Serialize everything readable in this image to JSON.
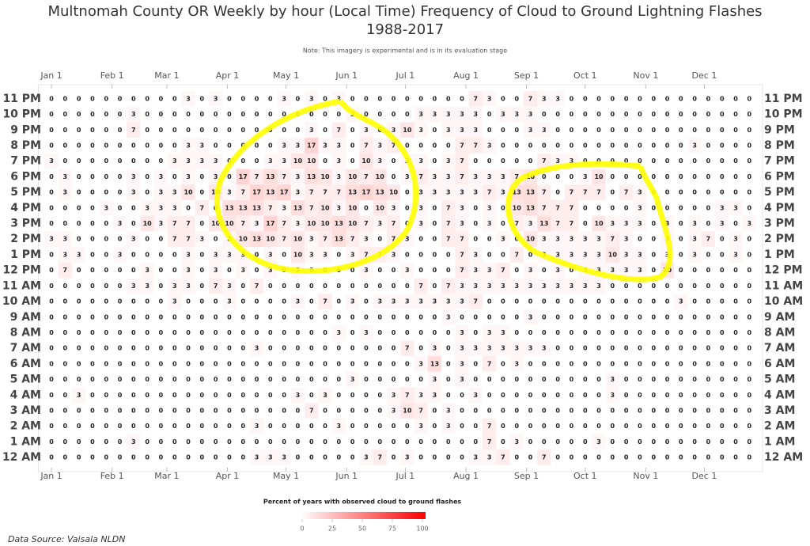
{
  "chart_data": {
    "type": "heatmap",
    "title": "Multnomah County OR Weekly by hour (Local Time) Frequency of Cloud to Ground Lightning Flashes",
    "subtitle": "1988-2017",
    "note": "Note: This imagery is experimental and is in its evaluation stage",
    "colorbar_title": "Percent of years with observed cloud to ground flashes",
    "source": "Data Source: Vaisala NLDN",
    "color_min": "#ffffff",
    "color_max": "#ff0000",
    "colorbar_lim": [
      0,
      100
    ],
    "colorbar_ticks": [
      0,
      25,
      50,
      75,
      100
    ],
    "xlim": [
      -0.5,
      51.5
    ],
    "xticks": [
      {
        "value": 0,
        "label": "Jan 1"
      },
      {
        "value": 4.43,
        "label": "Feb 1"
      },
      {
        "value": 8.43,
        "label": "Mar 1"
      },
      {
        "value": 12.86,
        "label": "Apr 1"
      },
      {
        "value": 17.14,
        "label": "May 1"
      },
      {
        "value": 21.57,
        "label": "Jun 1"
      },
      {
        "value": 25.86,
        "label": "Jul 1"
      },
      {
        "value": 30.29,
        "label": "Aug 1"
      },
      {
        "value": 34.71,
        "label": "Sep 1"
      },
      {
        "value": 39,
        "label": "Oct 1"
      },
      {
        "value": 43.43,
        "label": "Nov 1"
      },
      {
        "value": 47.71,
        "label": "Dec 1"
      }
    ],
    "hours": [
      "11 PM",
      "10 PM",
      "9 PM",
      "8 PM",
      "7 PM",
      "6 PM",
      "5 PM",
      "4 PM",
      "3 PM",
      "2 PM",
      "1 PM",
      "12 PM",
      "11 AM",
      "10 AM",
      "9 AM",
      "8 AM",
      "7 AM",
      "6 AM",
      "5 AM",
      "4 AM",
      "3 AM",
      "2 AM",
      "1 AM",
      "12 AM"
    ],
    "values": [
      [
        0,
        0,
        0,
        0,
        0,
        0,
        0,
        0,
        0,
        0,
        3,
        0,
        3,
        0,
        0,
        0,
        0,
        3,
        0,
        3,
        0,
        3,
        0,
        0,
        0,
        0,
        0,
        0,
        0,
        0,
        0,
        7,
        3,
        0,
        0,
        7,
        3,
        3,
        0,
        0,
        0,
        0,
        0,
        0,
        0,
        0,
        0,
        0,
        0,
        0,
        0,
        0
      ],
      [
        0,
        0,
        0,
        0,
        0,
        0,
        3,
        0,
        0,
        0,
        0,
        0,
        0,
        0,
        0,
        0,
        0,
        0,
        0,
        0,
        0,
        0,
        3,
        0,
        0,
        0,
        0,
        3,
        3,
        3,
        3,
        3,
        0,
        3,
        3,
        3,
        0,
        0,
        0,
        0,
        0,
        0,
        0,
        0,
        0,
        0,
        0,
        0,
        0,
        0,
        0,
        0
      ],
      [
        0,
        0,
        0,
        0,
        0,
        0,
        7,
        0,
        0,
        0,
        0,
        0,
        0,
        0,
        0,
        0,
        0,
        0,
        0,
        3,
        0,
        7,
        0,
        3,
        0,
        3,
        10,
        3,
        0,
        3,
        3,
        3,
        0,
        0,
        0,
        3,
        3,
        0,
        0,
        0,
        0,
        0,
        0,
        0,
        0,
        0,
        0,
        0,
        0,
        0,
        0,
        0
      ],
      [
        0,
        0,
        0,
        0,
        0,
        0,
        0,
        0,
        0,
        0,
        3,
        3,
        0,
        0,
        0,
        0,
        0,
        3,
        3,
        17,
        3,
        3,
        0,
        7,
        3,
        7,
        0,
        0,
        0,
        0,
        7,
        7,
        3,
        0,
        0,
        0,
        0,
        0,
        0,
        0,
        0,
        0,
        0,
        0,
        0,
        0,
        0,
        3,
        0,
        0,
        0,
        0
      ],
      [
        3,
        0,
        0,
        0,
        0,
        0,
        0,
        0,
        0,
        3,
        3,
        3,
        3,
        0,
        0,
        0,
        3,
        3,
        10,
        10,
        0,
        3,
        0,
        10,
        3,
        0,
        3,
        3,
        0,
        3,
        7,
        0,
        0,
        0,
        0,
        0,
        7,
        3,
        3,
        0,
        0,
        0,
        0,
        0,
        0,
        0,
        0,
        0,
        0,
        0,
        0,
        0
      ],
      [
        0,
        3,
        0,
        0,
        0,
        0,
        3,
        0,
        3,
        0,
        3,
        0,
        3,
        0,
        17,
        7,
        13,
        7,
        3,
        13,
        10,
        3,
        10,
        7,
        10,
        0,
        3,
        7,
        3,
        3,
        7,
        3,
        3,
        3,
        7,
        10,
        0,
        0,
        0,
        3,
        10,
        0,
        0,
        0,
        0,
        0,
        0,
        0,
        0,
        0,
        0,
        0
      ],
      [
        0,
        3,
        0,
        0,
        0,
        0,
        3,
        0,
        3,
        3,
        10,
        0,
        10,
        3,
        7,
        17,
        13,
        17,
        3,
        7,
        7,
        7,
        13,
        17,
        13,
        10,
        0,
        3,
        3,
        3,
        3,
        3,
        7,
        3,
        13,
        13,
        7,
        0,
        7,
        7,
        7,
        0,
        7,
        3,
        0,
        0,
        0,
        0,
        0,
        0,
        0,
        0
      ],
      [
        0,
        0,
        0,
        0,
        3,
        0,
        0,
        3,
        3,
        3,
        0,
        7,
        0,
        13,
        13,
        13,
        7,
        3,
        13,
        7,
        10,
        3,
        10,
        0,
        10,
        3,
        0,
        3,
        0,
        7,
        3,
        0,
        3,
        0,
        10,
        13,
        7,
        7,
        7,
        0,
        0,
        0,
        0,
        3,
        0,
        0,
        0,
        0,
        0,
        3,
        3,
        0
      ],
      [
        0,
        0,
        0,
        0,
        0,
        3,
        0,
        10,
        3,
        7,
        7,
        0,
        10,
        10,
        7,
        3,
        17,
        7,
        3,
        10,
        10,
        13,
        10,
        7,
        3,
        7,
        0,
        3,
        0,
        7,
        3,
        0,
        3,
        0,
        7,
        3,
        13,
        7,
        7,
        0,
        10,
        3,
        3,
        3,
        0,
        3,
        0,
        3,
        0,
        3,
        0,
        3
      ],
      [
        3,
        3,
        0,
        0,
        0,
        0,
        3,
        0,
        0,
        7,
        7,
        3,
        0,
        3,
        10,
        13,
        10,
        7,
        10,
        3,
        7,
        13,
        7,
        3,
        0,
        7,
        3,
        0,
        0,
        7,
        7,
        0,
        0,
        3,
        0,
        10,
        3,
        3,
        3,
        3,
        3,
        7,
        3,
        0,
        0,
        3,
        0,
        3,
        7,
        0,
        3,
        0
      ],
      [
        0,
        3,
        3,
        0,
        0,
        3,
        0,
        0,
        0,
        0,
        3,
        0,
        3,
        3,
        3,
        0,
        3,
        0,
        10,
        3,
        3,
        0,
        3,
        7,
        7,
        3,
        0,
        0,
        0,
        0,
        7,
        3,
        0,
        0,
        7,
        0,
        3,
        3,
        3,
        3,
        3,
        10,
        3,
        3,
        0,
        3,
        0,
        3,
        0,
        0,
        3,
        0
      ],
      [
        0,
        7,
        0,
        0,
        0,
        0,
        0,
        3,
        0,
        0,
        3,
        0,
        3,
        0,
        3,
        0,
        3,
        0,
        3,
        0,
        0,
        0,
        0,
        3,
        0,
        0,
        3,
        0,
        0,
        0,
        7,
        3,
        3,
        7,
        0,
        3,
        0,
        3,
        0,
        3,
        3,
        3,
        3,
        3,
        0,
        10,
        0,
        0,
        0,
        0,
        0,
        0
      ],
      [
        0,
        0,
        0,
        0,
        0,
        0,
        3,
        3,
        0,
        3,
        3,
        0,
        7,
        3,
        0,
        7,
        0,
        0,
        0,
        0,
        0,
        0,
        0,
        0,
        0,
        0,
        0,
        7,
        0,
        7,
        3,
        3,
        3,
        3,
        3,
        3,
        3,
        3,
        3,
        3,
        3,
        0,
        0,
        0,
        0,
        0,
        0,
        0,
        0,
        0,
        0,
        0
      ],
      [
        0,
        0,
        0,
        0,
        0,
        0,
        0,
        0,
        0,
        3,
        0,
        0,
        0,
        3,
        0,
        0,
        0,
        0,
        3,
        0,
        7,
        0,
        3,
        0,
        3,
        3,
        3,
        3,
        3,
        3,
        3,
        7,
        0,
        0,
        0,
        0,
        0,
        0,
        0,
        0,
        0,
        0,
        0,
        0,
        0,
        0,
        3,
        0,
        0,
        0,
        0,
        0
      ],
      [
        0,
        0,
        0,
        0,
        0,
        0,
        0,
        0,
        0,
        0,
        0,
        0,
        0,
        0,
        0,
        0,
        0,
        0,
        0,
        0,
        0,
        0,
        0,
        0,
        0,
        0,
        0,
        0,
        0,
        3,
        0,
        0,
        0,
        0,
        0,
        3,
        0,
        0,
        0,
        0,
        0,
        0,
        0,
        0,
        0,
        0,
        0,
        0,
        0,
        0,
        0,
        0
      ],
      [
        0,
        0,
        0,
        0,
        0,
        0,
        0,
        0,
        0,
        0,
        0,
        0,
        0,
        0,
        0,
        0,
        0,
        0,
        0,
        0,
        0,
        3,
        0,
        3,
        0,
        0,
        0,
        0,
        0,
        0,
        3,
        0,
        3,
        3,
        0,
        0,
        0,
        0,
        0,
        0,
        0,
        0,
        0,
        0,
        0,
        0,
        0,
        0,
        0,
        0,
        0,
        0
      ],
      [
        0,
        0,
        0,
        0,
        0,
        0,
        0,
        0,
        0,
        0,
        0,
        0,
        0,
        0,
        0,
        3,
        0,
        0,
        0,
        0,
        0,
        0,
        0,
        0,
        0,
        0,
        7,
        0,
        3,
        0,
        3,
        3,
        3,
        3,
        3,
        3,
        3,
        0,
        0,
        0,
        0,
        0,
        0,
        0,
        0,
        0,
        0,
        0,
        0,
        0,
        0,
        0
      ],
      [
        0,
        0,
        0,
        0,
        0,
        0,
        0,
        0,
        0,
        0,
        0,
        0,
        0,
        0,
        0,
        0,
        0,
        0,
        0,
        0,
        0,
        0,
        0,
        0,
        0,
        0,
        0,
        3,
        13,
        0,
        3,
        0,
        7,
        0,
        3,
        0,
        0,
        0,
        0,
        0,
        0,
        0,
        0,
        0,
        0,
        0,
        0,
        0,
        0,
        0,
        0,
        0
      ],
      [
        0,
        0,
        0,
        0,
        0,
        0,
        0,
        0,
        0,
        0,
        0,
        0,
        0,
        0,
        0,
        0,
        0,
        0,
        0,
        0,
        0,
        0,
        3,
        0,
        0,
        0,
        0,
        0,
        3,
        0,
        3,
        0,
        0,
        0,
        0,
        0,
        0,
        0,
        0,
        0,
        0,
        3,
        0,
        0,
        0,
        0,
        0,
        0,
        0,
        0,
        0,
        0
      ],
      [
        0,
        0,
        3,
        0,
        0,
        0,
        0,
        0,
        0,
        0,
        0,
        0,
        0,
        0,
        0,
        0,
        0,
        0,
        3,
        0,
        3,
        0,
        0,
        0,
        0,
        3,
        7,
        3,
        3,
        0,
        0,
        3,
        0,
        0,
        0,
        0,
        0,
        0,
        0,
        0,
        0,
        3,
        0,
        0,
        0,
        0,
        0,
        0,
        0,
        0,
        0,
        0
      ],
      [
        0,
        0,
        0,
        0,
        0,
        0,
        0,
        0,
        0,
        0,
        0,
        0,
        0,
        0,
        0,
        0,
        0,
        0,
        0,
        7,
        0,
        0,
        0,
        0,
        0,
        3,
        10,
        7,
        0,
        3,
        0,
        0,
        0,
        0,
        0,
        0,
        0,
        0,
        0,
        0,
        0,
        0,
        0,
        0,
        0,
        0,
        0,
        0,
        0,
        0,
        0,
        0
      ],
      [
        0,
        0,
        0,
        0,
        0,
        0,
        0,
        0,
        0,
        0,
        0,
        0,
        0,
        0,
        0,
        3,
        0,
        0,
        0,
        0,
        0,
        3,
        0,
        0,
        0,
        0,
        0,
        3,
        0,
        3,
        0,
        0,
        7,
        0,
        0,
        0,
        0,
        0,
        0,
        0,
        0,
        0,
        0,
        0,
        0,
        0,
        0,
        0,
        0,
        0,
        0,
        0
      ],
      [
        0,
        0,
        0,
        0,
        0,
        0,
        3,
        0,
        0,
        0,
        0,
        0,
        0,
        0,
        0,
        0,
        0,
        0,
        0,
        0,
        0,
        0,
        0,
        0,
        0,
        0,
        0,
        0,
        0,
        0,
        0,
        0,
        7,
        0,
        3,
        0,
        0,
        0,
        0,
        0,
        3,
        0,
        0,
        0,
        0,
        0,
        0,
        0,
        0,
        0,
        0,
        0
      ],
      [
        0,
        0,
        0,
        0,
        0,
        0,
        0,
        0,
        0,
        0,
        0,
        0,
        0,
        0,
        0,
        3,
        3,
        3,
        0,
        0,
        0,
        0,
        0,
        3,
        7,
        0,
        3,
        0,
        0,
        0,
        0,
        3,
        3,
        7,
        0,
        0,
        7,
        0,
        0,
        0,
        0,
        0,
        0,
        0,
        0,
        0,
        0,
        0,
        0,
        0,
        0,
        0
      ]
    ]
  }
}
